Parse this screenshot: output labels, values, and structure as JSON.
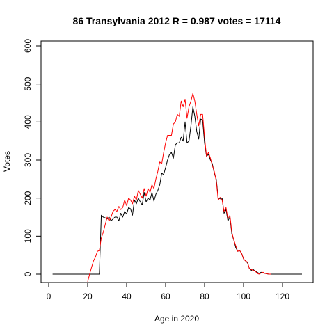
{
  "chart_data": {
    "type": "line",
    "title": "86 Transylvania 2012 R = 0.987 votes = 17114",
    "xlabel": "Age in 2020",
    "ylabel": "Votes",
    "xlim": [
      0,
      130
    ],
    "ylim": [
      0,
      600
    ],
    "xticks": [
      0,
      20,
      40,
      60,
      80,
      100,
      120
    ],
    "yticks": [
      0,
      100,
      200,
      300,
      400,
      500,
      600
    ],
    "grid": false,
    "series": [
      {
        "color": "#000000",
        "points": [
          [
            2,
            0
          ],
          [
            26,
            0
          ],
          [
            27,
            155
          ],
          [
            28,
            150
          ],
          [
            29,
            148
          ],
          [
            30,
            145
          ],
          [
            31,
            150
          ],
          [
            32,
            140
          ],
          [
            33,
            145
          ],
          [
            34,
            150
          ],
          [
            35,
            150
          ],
          [
            36,
            140
          ],
          [
            37,
            160
          ],
          [
            38,
            150
          ],
          [
            39,
            165
          ],
          [
            40,
            158
          ],
          [
            41,
            175
          ],
          [
            42,
            172
          ],
          [
            43,
            155
          ],
          [
            44,
            195
          ],
          [
            45,
            185
          ],
          [
            46,
            200
          ],
          [
            47,
            190
          ],
          [
            48,
            182
          ],
          [
            49,
            215
          ],
          [
            50,
            190
          ],
          [
            51,
            200
          ],
          [
            52,
            195
          ],
          [
            53,
            215
          ],
          [
            54,
            192
          ],
          [
            55,
            210
          ],
          [
            56,
            220
          ],
          [
            57,
            235
          ],
          [
            58,
            265
          ],
          [
            59,
            262
          ],
          [
            60,
            280
          ],
          [
            61,
            300
          ],
          [
            62,
            315
          ],
          [
            63,
            320
          ],
          [
            64,
            305
          ],
          [
            65,
            340
          ],
          [
            66,
            345
          ],
          [
            67,
            345
          ],
          [
            68,
            360
          ],
          [
            69,
            350
          ],
          [
            70,
            400
          ],
          [
            71,
            345
          ],
          [
            72,
            350
          ],
          [
            73,
            390
          ],
          [
            74,
            440
          ],
          [
            75,
            415
          ],
          [
            76,
            375
          ],
          [
            77,
            355
          ],
          [
            78,
            408
          ],
          [
            79,
            405
          ],
          [
            80,
            345
          ],
          [
            81,
            310
          ],
          [
            82,
            315
          ],
          [
            83,
            300
          ],
          [
            84,
            290
          ],
          [
            85,
            265
          ],
          [
            86,
            250
          ],
          [
            87,
            200
          ],
          [
            88,
            198
          ],
          [
            89,
            200
          ],
          [
            90,
            160
          ],
          [
            91,
            170
          ],
          [
            92,
            140
          ],
          [
            93,
            150
          ],
          [
            94,
            105
          ],
          [
            95,
            90
          ],
          [
            96,
            70
          ],
          [
            97,
            60
          ],
          [
            98,
            62
          ],
          [
            99,
            55
          ],
          [
            100,
            40
          ],
          [
            101,
            35
          ],
          [
            102,
            30
          ],
          [
            103,
            15
          ],
          [
            104,
            10
          ],
          [
            105,
            12
          ],
          [
            106,
            8
          ],
          [
            107,
            5
          ],
          [
            108,
            2
          ],
          [
            109,
            5
          ],
          [
            110,
            3
          ],
          [
            111,
            2
          ],
          [
            112,
            1
          ],
          [
            113,
            0
          ],
          [
            130,
            0
          ]
        ]
      },
      {
        "color": "#ff0000",
        "points": [
          [
            20,
            -20
          ],
          [
            21,
            0
          ],
          [
            22,
            18
          ],
          [
            23,
            35
          ],
          [
            24,
            45
          ],
          [
            25,
            60
          ],
          [
            26,
            62
          ],
          [
            27,
            95
          ],
          [
            28,
            110
          ],
          [
            29,
            130
          ],
          [
            30,
            150
          ],
          [
            31,
            140
          ],
          [
            32,
            150
          ],
          [
            33,
            165
          ],
          [
            34,
            170
          ],
          [
            35,
            165
          ],
          [
            36,
            178
          ],
          [
            37,
            170
          ],
          [
            38,
            175
          ],
          [
            39,
            195
          ],
          [
            40,
            180
          ],
          [
            41,
            200
          ],
          [
            42,
            195
          ],
          [
            43,
            185
          ],
          [
            44,
            205
          ],
          [
            45,
            195
          ],
          [
            46,
            220
          ],
          [
            47,
            210
          ],
          [
            48,
            200
          ],
          [
            49,
            225
          ],
          [
            50,
            205
          ],
          [
            51,
            225
          ],
          [
            52,
            215
          ],
          [
            53,
            235
          ],
          [
            54,
            225
          ],
          [
            55,
            250
          ],
          [
            56,
            270
          ],
          [
            57,
            295
          ],
          [
            58,
            290
          ],
          [
            59,
            320
          ],
          [
            60,
            345
          ],
          [
            61,
            365
          ],
          [
            62,
            365
          ],
          [
            63,
            365
          ],
          [
            64,
            395
          ],
          [
            65,
            400
          ],
          [
            66,
            420
          ],
          [
            67,
            415
          ],
          [
            68,
            455
          ],
          [
            69,
            440
          ],
          [
            70,
            460
          ],
          [
            71,
            410
          ],
          [
            72,
            440
          ],
          [
            73,
            455
          ],
          [
            74,
            475
          ],
          [
            75,
            455
          ],
          [
            76,
            420
          ],
          [
            77,
            390
          ],
          [
            78,
            420
          ],
          [
            79,
            420
          ],
          [
            80,
            360
          ],
          [
            81,
            310
          ],
          [
            82,
            320
          ],
          [
            83,
            305
          ],
          [
            84,
            285
          ],
          [
            85,
            270
          ],
          [
            86,
            245
          ],
          [
            87,
            195
          ],
          [
            88,
            202
          ],
          [
            89,
            195
          ],
          [
            90,
            165
          ],
          [
            91,
            175
          ],
          [
            92,
            145
          ],
          [
            93,
            155
          ],
          [
            94,
            110
          ],
          [
            95,
            90
          ],
          [
            96,
            75
          ],
          [
            97,
            60
          ],
          [
            98,
            62
          ],
          [
            99,
            55
          ],
          [
            100,
            40
          ],
          [
            101,
            35
          ],
          [
            102,
            32
          ],
          [
            103,
            15
          ],
          [
            104,
            12
          ],
          [
            105,
            10
          ],
          [
            106,
            8
          ],
          [
            107,
            2
          ],
          [
            108,
            0
          ],
          [
            109,
            3
          ],
          [
            110,
            5
          ],
          [
            111,
            2
          ],
          [
            112,
            1
          ],
          [
            113,
            0
          ],
          [
            114,
            0
          ]
        ]
      }
    ]
  }
}
